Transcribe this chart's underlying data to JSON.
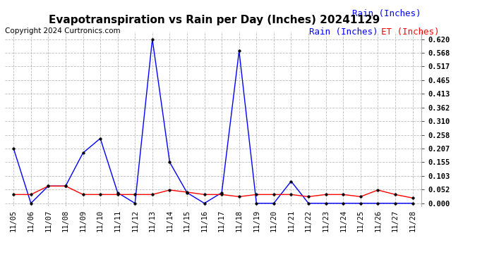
{
  "title": "Evapotranspiration vs Rain per Day (Inches) 20241129",
  "copyright": "Copyright 2024 Curtronics.com",
  "legend_rain": "Rain (Inches)",
  "legend_et": "ET (Inches)",
  "dates": [
    "11/05",
    "11/06",
    "11/07",
    "11/08",
    "11/09",
    "11/10",
    "11/11",
    "11/12",
    "11/13",
    "11/14",
    "11/15",
    "11/16",
    "11/17",
    "11/18",
    "11/19",
    "11/20",
    "11/21",
    "11/22",
    "11/23",
    "11/24",
    "11/25",
    "11/26",
    "11/27",
    "11/28"
  ],
  "rain": [
    0.207,
    0.0,
    0.065,
    0.065,
    0.19,
    0.245,
    0.04,
    0.0,
    0.62,
    0.155,
    0.04,
    0.0,
    0.04,
    0.575,
    0.0,
    0.0,
    0.083,
    0.0,
    0.0,
    0.0,
    0.0,
    0.0,
    0.0,
    0.0
  ],
  "et": [
    0.033,
    0.033,
    0.065,
    0.065,
    0.033,
    0.033,
    0.033,
    0.033,
    0.033,
    0.05,
    0.042,
    0.033,
    0.033,
    0.025,
    0.033,
    0.033,
    0.033,
    0.025,
    0.033,
    0.033,
    0.025,
    0.05,
    0.033,
    0.02
  ],
  "rain_color": "#0000ff",
  "et_color": "#ff0000",
  "yticks": [
    0.0,
    0.052,
    0.103,
    0.155,
    0.207,
    0.258,
    0.31,
    0.362,
    0.413,
    0.465,
    0.517,
    0.568,
    0.62
  ],
  "ylim": [
    -0.01,
    0.648
  ],
  "background_color": "#ffffff",
  "grid_color": "#bbbbbb",
  "title_fontsize": 11,
  "tick_fontsize": 7.5,
  "copyright_fontsize": 7.5,
  "legend_fontsize": 9
}
